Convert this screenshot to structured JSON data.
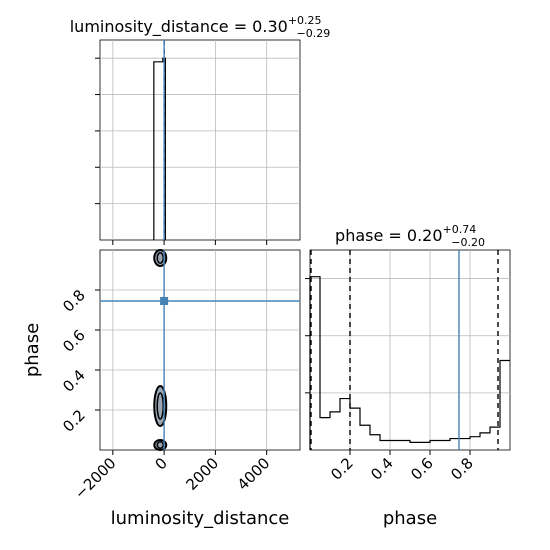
{
  "chart_data": {
    "type": "corner",
    "parameters": [
      "luminosity_distance",
      "phase"
    ],
    "injection": {
      "luminosity_distance": 0,
      "phase": 0.745
    },
    "panels": [
      {
        "id": "luminosity_distance_hist",
        "type": "histogram",
        "title": {
          "main": "luminosity_distance = 0.30",
          "sup": "+0.25",
          "sub": "−0.29"
        },
        "xlim": [
          -2500,
          5300
        ],
        "ylim": [
          0,
          1
        ],
        "grid": true,
        "bins": [
          {
            "x0": -400,
            "x1": -50,
            "h": 0.98
          },
          {
            "x0": -50,
            "x1": 50,
            "h": 1.0
          }
        ],
        "quantile_lines": [
          0.0,
          0.3,
          0.55
        ],
        "truth": 0
      },
      {
        "id": "phase_vs_distance_2d",
        "type": "contour",
        "xlim": [
          -2500,
          5300
        ],
        "ylim": [
          0.0,
          1.0
        ],
        "grid": true,
        "x_ticks": [
          -2000,
          0,
          2000,
          4000
        ],
        "x_tick_labels": [
          "−2000",
          "0",
          "2000",
          "4000"
        ],
        "y_ticks": [
          0.2,
          0.4,
          0.6,
          0.8
        ],
        "y_tick_labels": [
          "0.2",
          "0.4",
          "0.6",
          "0.8"
        ],
        "xlabel": "luminosity_distance",
        "ylabel": "phase",
        "contours": [
          {
            "x": -150,
            "y0": 0.0,
            "y1": 0.05
          },
          {
            "x": -150,
            "y0": 0.12,
            "y1": 0.32
          },
          {
            "x": -150,
            "y0": 0.92,
            "y1": 1.0
          }
        ],
        "truth": {
          "x": 0,
          "y": 0.745
        }
      },
      {
        "id": "phase_hist",
        "type": "histogram",
        "title": {
          "main": "phase = 0.20",
          "sup": "+0.74",
          "sub": "−0.20"
        },
        "xlim": [
          0.0,
          1.0
        ],
        "ylim": [
          0,
          1
        ],
        "grid": true,
        "x_ticks": [
          0.2,
          0.4,
          0.6,
          0.8
        ],
        "x_tick_labels": [
          "0.2",
          "0.4",
          "0.6",
          "0.8"
        ],
        "xlabel": "phase",
        "edges": [
          0.0,
          0.05,
          0.1,
          0.15,
          0.2,
          0.25,
          0.3,
          0.35,
          0.4,
          0.45,
          0.5,
          0.55,
          0.6,
          0.65,
          0.7,
          0.75,
          0.8,
          0.85,
          0.9,
          0.95,
          1.0
        ],
        "values": [
          0.91,
          0.17,
          0.2,
          0.27,
          0.22,
          0.13,
          0.08,
          0.05,
          0.05,
          0.05,
          0.04,
          0.04,
          0.05,
          0.05,
          0.06,
          0.06,
          0.07,
          0.09,
          0.12,
          0.47
        ],
        "quantile_lines": [
          0.0,
          0.2,
          0.94
        ],
        "truth": 0.745
      }
    ]
  },
  "colors": {
    "truth": "#4682b4",
    "hist": "#000000",
    "grid": "#bbbbbb",
    "contour_fill": "#9aa6b3"
  }
}
